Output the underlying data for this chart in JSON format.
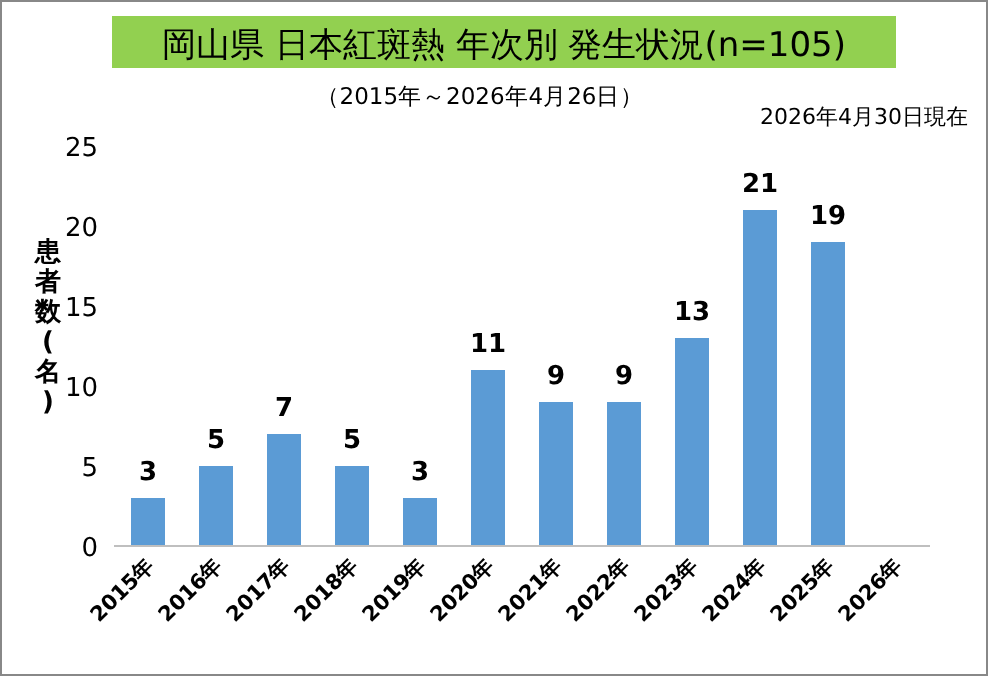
{
  "chart_data": {
    "type": "bar",
    "title": "岡山県 日本紅斑熱 年次別 発生状況(n=105)",
    "subtitle": "（2015年～2026年4月26日）",
    "annotations": [
      "2026年4月30日現在"
    ],
    "ylabel": "患者数(名)",
    "categories": [
      "2015年",
      "2016年",
      "2017年",
      "2018年",
      "2019年",
      "2020年",
      "2021年",
      "2022年",
      "2023年",
      "2024年",
      "2025年",
      "2026年"
    ],
    "values": [
      3,
      5,
      7,
      5,
      3,
      11,
      9,
      9,
      13,
      21,
      19,
      null
    ],
    "color": "#5b9bd5",
    "ylim": [
      0,
      25
    ],
    "yticks": [
      0,
      5,
      10,
      15,
      20,
      25
    ],
    "data_labels": true,
    "grid": false
  }
}
